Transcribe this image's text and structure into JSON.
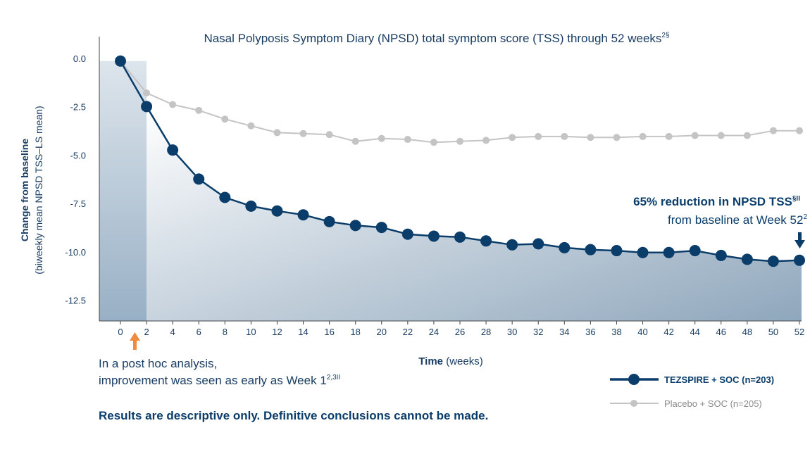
{
  "chart_data": {
    "type": "line",
    "title": "Nasal Polyposis Symptom Diary (NPSD) total symptom score (TSS) through 52 weeks",
    "title_superscript": "2§",
    "ylabel_line1": "Change from baseline",
    "ylabel_line2": "(biweekly mean NPSD TSS–LS mean)",
    "xlabel_bold": "Time",
    "xlabel_rest": "(weeks)",
    "ylim": [
      -13.5,
      1.0
    ],
    "xlim": [
      -1.5,
      52.2
    ],
    "y_ticks": [
      0.0,
      -2.5,
      -5.0,
      -7.5,
      -10.0,
      -12.5
    ],
    "y_tick_labels": [
      "0.0",
      "-2.5",
      "-5.0",
      "-7.5",
      "-10.0",
      "-12.5"
    ],
    "x_ticks": [
      0,
      2,
      4,
      6,
      8,
      10,
      12,
      14,
      16,
      18,
      20,
      22,
      24,
      26,
      28,
      30,
      32,
      34,
      36,
      38,
      40,
      42,
      44,
      46,
      48,
      50,
      52
    ],
    "x_tick_labels": [
      "0",
      "2",
      "4",
      "6",
      "8",
      "10",
      "12",
      "14",
      "16",
      "18",
      "20",
      "22",
      "24",
      "26",
      "28",
      "30",
      "32",
      "34",
      "36",
      "38",
      "40",
      "42",
      "44",
      "46",
      "48",
      "50",
      "52"
    ],
    "grid": false,
    "legend_position": "bottom-right",
    "series": [
      {
        "name": "TEZSPIRE + SOC (n=203)",
        "color": "#0b3d6b",
        "x": [
          0,
          2,
          4,
          6,
          8,
          10,
          12,
          14,
          16,
          18,
          20,
          22,
          24,
          26,
          28,
          30,
          32,
          34,
          36,
          38,
          40,
          42,
          44,
          46,
          48,
          50,
          52
        ],
        "values": [
          -0.1,
          -2.45,
          -4.7,
          -6.2,
          -7.15,
          -7.6,
          -7.85,
          -8.05,
          -8.4,
          -8.6,
          -8.7,
          -9.05,
          -9.15,
          -9.2,
          -9.4,
          -9.6,
          -9.55,
          -9.75,
          -9.85,
          -9.9,
          -10.0,
          -10.0,
          -9.9,
          -10.15,
          -10.35,
          -10.45,
          -10.4
        ]
      },
      {
        "name": "Placebo + SOC (n=205)",
        "color": "#c4c4c4",
        "x": [
          0,
          2,
          4,
          6,
          8,
          10,
          12,
          14,
          16,
          18,
          20,
          22,
          24,
          26,
          28,
          30,
          32,
          34,
          36,
          38,
          40,
          42,
          44,
          46,
          48,
          50,
          52
        ],
        "values": [
          -0.1,
          -1.75,
          -2.35,
          -2.65,
          -3.1,
          -3.45,
          -3.8,
          -3.85,
          -3.9,
          -4.25,
          -4.1,
          -4.15,
          -4.3,
          -4.25,
          -4.2,
          -4.05,
          -4.0,
          -4.0,
          -4.05,
          -4.05,
          -4.0,
          -4.0,
          -3.95,
          -3.95,
          -3.95,
          -3.7,
          -3.7
        ]
      }
    ],
    "annotations": {
      "reduction_bold": "65% reduction in NPSD TSS",
      "reduction_superscript": "§II",
      "reduction_line2": "from baseline at Week 52",
      "reduction_line2_superscript": "2",
      "posthoc_line1": "In a post hoc analysis,",
      "posthoc_line2": "improvement was seen as early as Week 1",
      "posthoc_superscript": "2,3II",
      "footer": "Results are descriptive only. Definitive conclusions cannot be made."
    },
    "colors": {
      "primary": "#0b3d6b",
      "placebo": "#c4c4c4",
      "arrow_orange": "#f08a3e",
      "axis": "#444444",
      "shade_light": "#ffffff",
      "shade_dark": "#8fa7bc",
      "baseline_shade": "#98b0c5"
    }
  }
}
